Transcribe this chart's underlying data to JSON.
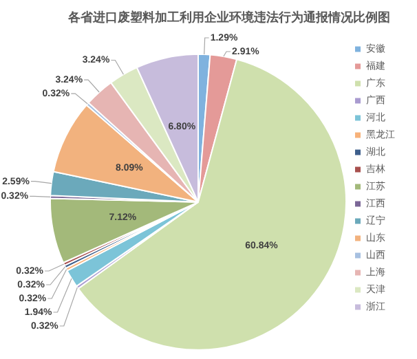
{
  "chart_data": {
    "type": "pie",
    "title": "各省进口废塑料加工利用企业环境违法行为通报情况比例图",
    "categories": [
      "安徽",
      "福建",
      "广东",
      "广西",
      "河北",
      "黑龙江",
      "湖北",
      "吉林",
      "江苏",
      "江西",
      "辽宁",
      "山东",
      "山西",
      "上海",
      "天津",
      "浙江"
    ],
    "values": [
      1.29,
      2.91,
      60.84,
      0.32,
      1.94,
      0.32,
      0.32,
      0.32,
      7.12,
      0.32,
      2.59,
      8.09,
      0.32,
      3.24,
      3.24,
      6.8
    ],
    "value_labels": [
      "1.29%",
      "2.91%",
      "60.84%",
      "0.32%",
      "1.94%",
      "0.32%",
      "0.32%",
      "0.32%",
      "7.12%",
      "0.32%",
      "2.59%",
      "8.09%",
      "0.32%",
      "3.24%",
      "3.24%",
      "6.80%"
    ],
    "colors": [
      "#7fb2de",
      "#e49a98",
      "#cfe0ad",
      "#a99bd0",
      "#7cc4d8",
      "#f7b27a",
      "#3e5f8c",
      "#a8504e",
      "#a3b97a",
      "#7b6797",
      "#6ba9bb",
      "#f2b27e",
      "#a7c0e0",
      "#e6b5b3",
      "#dbe8c2",
      "#c7bcdc"
    ],
    "legend": "right"
  }
}
